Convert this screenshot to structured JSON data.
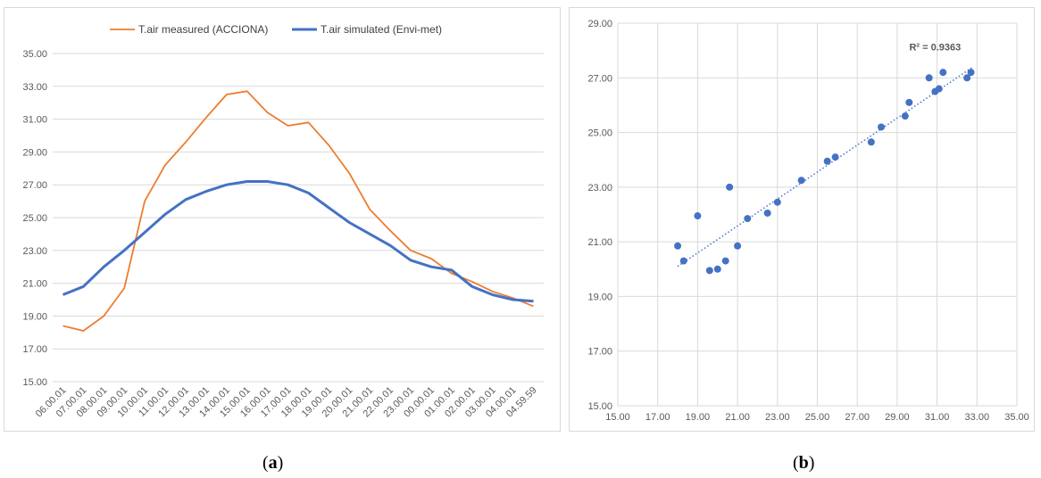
{
  "captions": {
    "a": "a",
    "b": "b"
  },
  "chart_data": [
    {
      "type": "line",
      "title": "",
      "xlabel": "",
      "ylabel": "",
      "ylim": [
        15,
        35
      ],
      "y_ticks": [
        "15.00",
        "17.00",
        "19.00",
        "21.00",
        "23.00",
        "25.00",
        "27.00",
        "29.00",
        "31.00",
        "33.00",
        "35.00"
      ],
      "categories": [
        "06.00.01",
        "07.00.01",
        "08.00.01",
        "09.00.01",
        "10.00.01",
        "11.00.01",
        "12.00.01",
        "13.00.01",
        "14.00.01",
        "15.00.01",
        "16.00.01",
        "17.00.01",
        "18.00.01",
        "19.00.01",
        "20.00.01",
        "21.00.01",
        "22.00.01",
        "23.00.01",
        "00.00.01",
        "01.00.01",
        "02.00.01",
        "03.00.01",
        "04.00.01",
        "04.59.59"
      ],
      "grid": "horizontal",
      "legend": "top",
      "series": [
        {
          "name": "T.air measured (ACCIONA)",
          "color": "#ED7D31",
          "values": [
            18.4,
            18.1,
            19.0,
            20.7,
            26.0,
            28.2,
            29.6,
            31.1,
            32.5,
            32.7,
            31.4,
            30.6,
            30.8,
            29.4,
            27.7,
            25.5,
            24.2,
            23.0,
            22.5,
            21.6,
            21.1,
            20.5,
            20.1,
            19.6
          ]
        },
        {
          "name": "T.air simulated (Envi-met)",
          "color": "#4472C4",
          "values": [
            20.3,
            20.8,
            22.0,
            23.0,
            24.1,
            25.2,
            26.1,
            26.6,
            27.0,
            27.2,
            27.2,
            27.0,
            26.5,
            25.6,
            24.7,
            24.0,
            23.3,
            22.4,
            22.0,
            21.8,
            20.8,
            20.3,
            20.0,
            19.9
          ]
        }
      ]
    },
    {
      "type": "scatter",
      "title": "",
      "xlabel": "",
      "ylabel": "",
      "xlim": [
        15,
        35
      ],
      "ylim": [
        15,
        29
      ],
      "x_ticks": [
        "15.00",
        "17.00",
        "19.00",
        "21.00",
        "23.00",
        "25.00",
        "27.00",
        "29.00",
        "31.00",
        "33.00",
        "35.00"
      ],
      "y_ticks": [
        "15.00",
        "17.00",
        "19.00",
        "21.00",
        "23.00",
        "25.00",
        "27.00",
        "29.00"
      ],
      "grid": "both",
      "annotation": "R² = 0.9363",
      "trendline": {
        "style": "dotted linear",
        "from": [
          18.0,
          20.1
        ],
        "to": [
          32.8,
          27.4
        ]
      },
      "points": [
        [
          18.0,
          20.85
        ],
        [
          18.3,
          20.3
        ],
        [
          19.0,
          21.95
        ],
        [
          19.6,
          19.95
        ],
        [
          20.0,
          20.0
        ],
        [
          20.4,
          20.3
        ],
        [
          20.6,
          23.0
        ],
        [
          21.0,
          20.85
        ],
        [
          21.5,
          21.85
        ],
        [
          22.5,
          22.05
        ],
        [
          23.0,
          22.45
        ],
        [
          24.2,
          23.25
        ],
        [
          25.5,
          23.95
        ],
        [
          25.9,
          24.1
        ],
        [
          27.7,
          24.65
        ],
        [
          28.2,
          25.2
        ],
        [
          29.4,
          25.6
        ],
        [
          29.6,
          26.1
        ],
        [
          30.6,
          27.0
        ],
        [
          30.9,
          26.5
        ],
        [
          31.1,
          26.6
        ],
        [
          31.3,
          27.2
        ],
        [
          32.5,
          27.0
        ],
        [
          32.7,
          27.2
        ]
      ],
      "marker_color": "#4472C4"
    }
  ]
}
